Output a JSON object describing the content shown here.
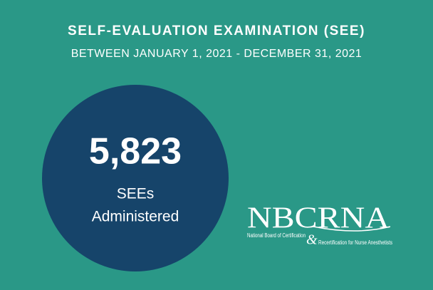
{
  "header": {
    "title": "SELF-EVALUATION EXAMINATION (SEE)",
    "subtitle": "BETWEEN JANUARY 1, 2021 - DECEMBER 31, 2021"
  },
  "stat": {
    "value": "5,823",
    "label_line1": "SEEs",
    "label_line2": "Administered"
  },
  "logo": {
    "name": "NBCRNA",
    "line1": "National Board of Certification",
    "ampersand": "&",
    "line2": "Recertification for Nurse Anesthetists"
  }
}
